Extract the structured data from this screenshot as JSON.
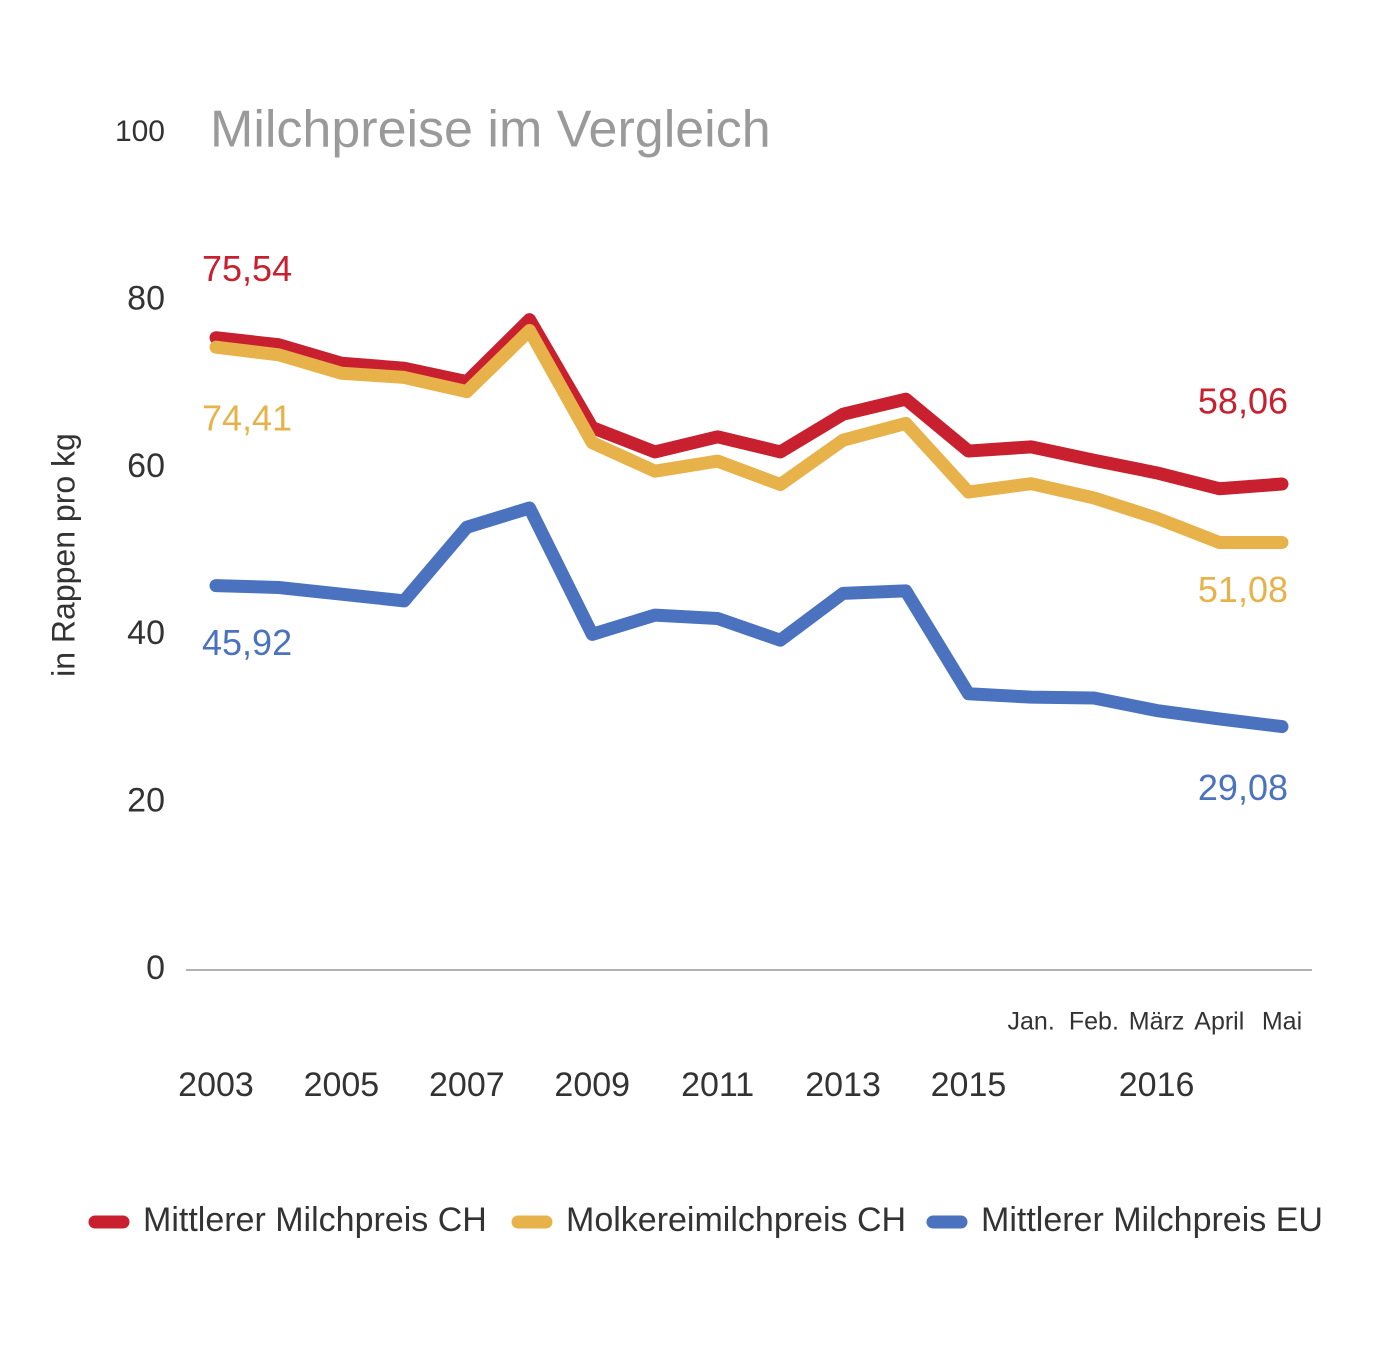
{
  "chart_data": {
    "type": "line",
    "title": "Milchpreise im Vergleich",
    "y_label": "in Rappen pro kg",
    "categories": [
      "2003",
      null,
      "2005",
      null,
      "2007",
      null,
      "2009",
      null,
      "2011",
      null,
      "2013",
      null,
      "2015",
      "Jan.",
      "Feb.",
      "März",
      "April",
      "Mai"
    ],
    "group_label": "2016",
    "ylim": [
      0,
      100
    ],
    "yticks": [
      0,
      20,
      40,
      60,
      80,
      100
    ],
    "grid": false,
    "series": [
      {
        "name": "Mittlerer Milchpreis CH",
        "color": "#c8202f",
        "values": [
          75.54,
          74.7,
          72.5,
          71.9,
          70.3,
          77.7,
          64.8,
          61.9,
          63.7,
          61.9,
          66.4,
          68.2,
          62.0,
          62.5,
          60.9,
          59.4,
          57.5,
          58.06
        ],
        "value_labels": [
          "75,54",
          null,
          null,
          null,
          null,
          null,
          null,
          null,
          null,
          null,
          null,
          null,
          null,
          null,
          null,
          null,
          null,
          "58,06"
        ]
      },
      {
        "name": "Molkereimilchpreis CH",
        "color": "#e8b24a",
        "values": [
          74.41,
          73.5,
          71.3,
          70.8,
          69.1,
          76.4,
          63.0,
          59.6,
          60.8,
          58.0,
          63.3,
          65.3,
          57.1,
          58.1,
          56.4,
          54.0,
          51.08,
          51.08
        ],
        "value_labels": [
          "74,41",
          null,
          null,
          null,
          null,
          null,
          null,
          null,
          null,
          null,
          null,
          null,
          null,
          null,
          null,
          null,
          null,
          "51,08"
        ]
      },
      {
        "name": "Mittlerer Milchpreis EU",
        "color": "#4a72bf",
        "values": [
          45.92,
          45.7,
          44.9,
          44.1,
          52.9,
          55.2,
          40.1,
          42.4,
          42.0,
          39.4,
          45.0,
          45.3,
          33.0,
          32.6,
          32.5,
          31.0,
          30.0,
          29.08
        ],
        "value_labels": [
          "45,92",
          null,
          null,
          null,
          null,
          null,
          null,
          null,
          null,
          null,
          null,
          null,
          null,
          null,
          null,
          null,
          null,
          "29,08"
        ]
      }
    ]
  }
}
